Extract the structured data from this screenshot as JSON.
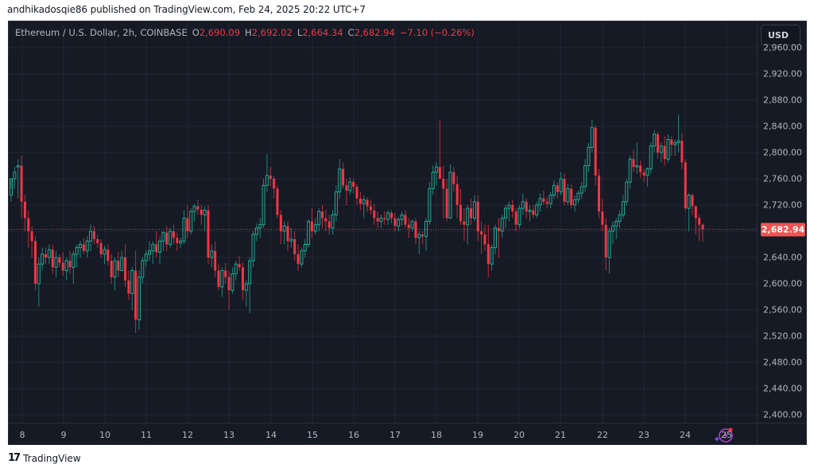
{
  "header": {
    "published_text": "andhikadosqie86 published on TradingView.com, Feb 24, 2025 20:22 UTC+7"
  },
  "legend": {
    "symbol": "Ethereum / U.S. Dollar, 2h, COINBASE",
    "o_label": "O",
    "o_value": "2,690.09",
    "h_label": "H",
    "h_value": "2,692.02",
    "l_label": "L",
    "l_value": "2,664.34",
    "c_label": "C",
    "c_value": "2,682.94",
    "change": "−7.10 (−0.26%)"
  },
  "price_axis": {
    "currency_button": "USD",
    "last_price_label": "2,682.94",
    "last_price_color": "#f05350"
  },
  "footer": {
    "brand": "TradingView",
    "logo_glyph": "17"
  },
  "icons": {
    "ai_assistant": "sparkle-lightning-icon"
  },
  "colors": {
    "background": "#161a25",
    "grid": "#232733",
    "up": "#22ab94",
    "down": "#f23645",
    "text": "#b2b5be"
  },
  "chart_data": {
    "type": "candlestick",
    "title": "Ethereum / U.S. Dollar, 2h, COINBASE",
    "xlabel": "",
    "ylabel": "USD",
    "ylim": [
      2380,
      2990
    ],
    "y_ticks": [
      2400,
      2440,
      2480,
      2520,
      2560,
      2600,
      2640,
      2680,
      2720,
      2760,
      2800,
      2840,
      2880,
      2920,
      2960
    ],
    "y_tick_labels": [
      "2,400.00",
      "2,440.00",
      "2,480.00",
      "2,520.00",
      "2,560.00",
      "2,600.00",
      "2,640.00",
      "2,680.00",
      "2,720.00",
      "2,760.00",
      "2,800.00",
      "2,840.00",
      "2,880.00",
      "2,920.00",
      "2,960.00"
    ],
    "x_tick_labels": [
      "8",
      "9",
      "10",
      "11",
      "12",
      "13",
      "14",
      "15",
      "16",
      "17",
      "18",
      "19",
      "20",
      "21",
      "22",
      "23",
      "24",
      "25"
    ],
    "x_tick_positions": [
      17,
      69,
      121,
      173,
      225,
      277,
      330,
      382,
      434,
      486,
      538,
      590,
      642,
      694,
      747,
      799,
      851,
      903
    ],
    "grid": true,
    "last_price": 2682.94,
    "candle_spacing": 4.35,
    "first_candle_x": 3,
    "ohlc": [
      [
        2735,
        2745,
        2725,
        2760
      ],
      [
        2760,
        2778,
        2745,
        2770
      ],
      [
        2778,
        2790,
        2730,
        2780
      ],
      [
        2780,
        2795,
        2700,
        2725
      ],
      [
        2725,
        2735,
        2680,
        2700
      ],
      [
        2700,
        2712,
        2655,
        2680
      ],
      [
        2680,
        2688,
        2640,
        2665
      ],
      [
        2665,
        2672,
        2590,
        2600
      ],
      [
        2600,
        2640,
        2565,
        2630
      ],
      [
        2630,
        2655,
        2620,
        2645
      ],
      [
        2645,
        2655,
        2630,
        2640
      ],
      [
        2640,
        2660,
        2630,
        2652
      ],
      [
        2652,
        2660,
        2615,
        2625
      ],
      [
        2625,
        2650,
        2610,
        2640
      ],
      [
        2640,
        2645,
        2625,
        2632
      ],
      [
        2632,
        2648,
        2612,
        2620
      ],
      [
        2620,
        2640,
        2605,
        2635
      ],
      [
        2635,
        2650,
        2615,
        2625
      ],
      [
        2625,
        2650,
        2600,
        2645
      ],
      [
        2645,
        2660,
        2625,
        2655
      ],
      [
        2655,
        2665,
        2640,
        2660
      ],
      [
        2660,
        2670,
        2645,
        2650
      ],
      [
        2650,
        2672,
        2640,
        2665
      ],
      [
        2665,
        2690,
        2650,
        2680
      ],
      [
        2680,
        2688,
        2660,
        2668
      ],
      [
        2668,
        2675,
        2655,
        2662
      ],
      [
        2662,
        2668,
        2640,
        2645
      ],
      [
        2645,
        2658,
        2630,
        2652
      ],
      [
        2652,
        2660,
        2628,
        2635
      ],
      [
        2635,
        2645,
        2600,
        2610
      ],
      [
        2610,
        2640,
        2590,
        2635
      ],
      [
        2635,
        2648,
        2610,
        2620
      ],
      [
        2620,
        2650,
        2620,
        2640
      ],
      [
        2640,
        2660,
        2595,
        2605
      ],
      [
        2605,
        2620,
        2575,
        2585
      ],
      [
        2585,
        2625,
        2560,
        2620
      ],
      [
        2620,
        2650,
        2525,
        2545
      ],
      [
        2545,
        2620,
        2530,
        2610
      ],
      [
        2610,
        2640,
        2600,
        2635
      ],
      [
        2635,
        2650,
        2625,
        2645
      ],
      [
        2645,
        2665,
        2635,
        2650
      ],
      [
        2650,
        2665,
        2630,
        2660
      ],
      [
        2660,
        2680,
        2640,
        2648
      ],
      [
        2648,
        2672,
        2630,
        2665
      ],
      [
        2665,
        2680,
        2650,
        2678
      ],
      [
        2678,
        2688,
        2650,
        2660
      ],
      [
        2660,
        2685,
        2655,
        2680
      ],
      [
        2680,
        2690,
        2660,
        2670
      ],
      [
        2670,
        2678,
        2650,
        2662
      ],
      [
        2662,
        2670,
        2655,
        2665
      ],
      [
        2665,
        2712,
        2660,
        2700
      ],
      [
        2700,
        2720,
        2670,
        2680
      ],
      [
        2680,
        2715,
        2675,
        2710
      ],
      [
        2710,
        2722,
        2695,
        2718
      ],
      [
        2718,
        2728,
        2705,
        2713
      ],
      [
        2713,
        2720,
        2690,
        2705
      ],
      [
        2705,
        2718,
        2680,
        2712
      ],
      [
        2712,
        2720,
        2630,
        2640
      ],
      [
        2640,
        2660,
        2625,
        2650
      ],
      [
        2650,
        2665,
        2610,
        2620
      ],
      [
        2620,
        2630,
        2590,
        2595
      ],
      [
        2595,
        2625,
        2580,
        2620
      ],
      [
        2620,
        2632,
        2600,
        2610
      ],
      [
        2610,
        2620,
        2560,
        2590
      ],
      [
        2590,
        2625,
        2585,
        2615
      ],
      [
        2615,
        2635,
        2605,
        2630
      ],
      [
        2630,
        2642,
        2620,
        2625
      ],
      [
        2625,
        2632,
        2575,
        2590
      ],
      [
        2590,
        2605,
        2565,
        2600
      ],
      [
        2600,
        2640,
        2555,
        2635
      ],
      [
        2635,
        2680,
        2625,
        2675
      ],
      [
        2675,
        2692,
        2665,
        2685
      ],
      [
        2685,
        2700,
        2670,
        2690
      ],
      [
        2690,
        2760,
        2685,
        2750
      ],
      [
        2750,
        2798,
        2740,
        2765
      ],
      [
        2765,
        2778,
        2748,
        2760
      ],
      [
        2760,
        2765,
        2730,
        2745
      ],
      [
        2745,
        2750,
        2700,
        2705
      ],
      [
        2705,
        2712,
        2660,
        2680
      ],
      [
        2680,
        2695,
        2660,
        2688
      ],
      [
        2688,
        2695,
        2650,
        2665
      ],
      [
        2665,
        2685,
        2655,
        2668
      ],
      [
        2668,
        2680,
        2635,
        2645
      ],
      [
        2645,
        2660,
        2620,
        2630
      ],
      [
        2630,
        2655,
        2625,
        2650
      ],
      [
        2650,
        2668,
        2640,
        2660
      ],
      [
        2660,
        2698,
        2655,
        2695
      ],
      [
        2695,
        2715,
        2670,
        2680
      ],
      [
        2680,
        2700,
        2675,
        2690
      ],
      [
        2690,
        2715,
        2680,
        2710
      ],
      [
        2710,
        2720,
        2685,
        2700
      ],
      [
        2700,
        2712,
        2680,
        2695
      ],
      [
        2695,
        2705,
        2675,
        2685
      ],
      [
        2685,
        2712,
        2675,
        2705
      ],
      [
        2705,
        2750,
        2695,
        2740
      ],
      [
        2740,
        2790,
        2730,
        2775
      ],
      [
        2775,
        2785,
        2745,
        2750
      ],
      [
        2750,
        2760,
        2720,
        2742
      ],
      [
        2742,
        2762,
        2735,
        2755
      ],
      [
        2755,
        2760,
        2738,
        2748
      ],
      [
        2748,
        2752,
        2720,
        2730
      ],
      [
        2730,
        2740,
        2712,
        2722
      ],
      [
        2722,
        2735,
        2700,
        2728
      ],
      [
        2728,
        2732,
        2710,
        2718
      ],
      [
        2718,
        2728,
        2705,
        2712
      ],
      [
        2712,
        2722,
        2690,
        2700
      ],
      [
        2700,
        2710,
        2685,
        2695
      ],
      [
        2695,
        2705,
        2685,
        2700
      ],
      [
        2700,
        2710,
        2690,
        2698
      ],
      [
        2698,
        2712,
        2690,
        2708
      ],
      [
        2708,
        2712,
        2692,
        2700
      ],
      [
        2700,
        2708,
        2680,
        2688
      ],
      [
        2688,
        2702,
        2680,
        2698
      ],
      [
        2698,
        2710,
        2688,
        2705
      ],
      [
        2705,
        2712,
        2685,
        2690
      ],
      [
        2690,
        2700,
        2670,
        2685
      ],
      [
        2685,
        2698,
        2680,
        2695
      ],
      [
        2695,
        2700,
        2660,
        2670
      ],
      [
        2670,
        2680,
        2645,
        2675
      ],
      [
        2675,
        2680,
        2660,
        2672
      ],
      [
        2672,
        2700,
        2650,
        2695
      ],
      [
        2695,
        2755,
        2690,
        2745
      ],
      [
        2745,
        2780,
        2735,
        2770
      ],
      [
        2770,
        2785,
        2750,
        2778
      ],
      [
        2778,
        2850,
        2770,
        2760
      ],
      [
        2760,
        2780,
        2700,
        2745
      ],
      [
        2745,
        2760,
        2695,
        2700
      ],
      [
        2700,
        2782,
        2700,
        2770
      ],
      [
        2770,
        2778,
        2740,
        2752
      ],
      [
        2752,
        2765,
        2700,
        2720
      ],
      [
        2720,
        2745,
        2690,
        2695
      ],
      [
        2695,
        2715,
        2665,
        2690
      ],
      [
        2690,
        2720,
        2660,
        2715
      ],
      [
        2715,
        2730,
        2690,
        2700
      ],
      [
        2700,
        2735,
        2695,
        2725
      ],
      [
        2725,
        2735,
        2665,
        2680
      ],
      [
        2680,
        2695,
        2645,
        2675
      ],
      [
        2675,
        2690,
        2650,
        2660
      ],
      [
        2660,
        2690,
        2610,
        2630
      ],
      [
        2630,
        2660,
        2620,
        2655
      ],
      [
        2655,
        2690,
        2645,
        2685
      ],
      [
        2685,
        2700,
        2640,
        2680
      ],
      [
        2680,
        2705,
        2670,
        2700
      ],
      [
        2700,
        2720,
        2685,
        2715
      ],
      [
        2715,
        2725,
        2695,
        2720
      ],
      [
        2720,
        2728,
        2700,
        2710
      ],
      [
        2710,
        2715,
        2680,
        2690
      ],
      [
        2690,
        2720,
        2685,
        2715
      ],
      [
        2715,
        2738,
        2705,
        2725
      ],
      [
        2725,
        2730,
        2700,
        2710
      ],
      [
        2710,
        2720,
        2695,
        2712
      ],
      [
        2712,
        2720,
        2700,
        2705
      ],
      [
        2705,
        2725,
        2700,
        2720
      ],
      [
        2720,
        2738,
        2710,
        2730
      ],
      [
        2730,
        2742,
        2720,
        2725
      ],
      [
        2725,
        2732,
        2715,
        2722
      ],
      [
        2722,
        2740,
        2715,
        2735
      ],
      [
        2735,
        2758,
        2730,
        2750
      ],
      [
        2750,
        2755,
        2730,
        2740
      ],
      [
        2740,
        2770,
        2735,
        2760
      ],
      [
        2760,
        2768,
        2720,
        2725
      ],
      [
        2725,
        2752,
        2720,
        2745
      ],
      [
        2745,
        2752,
        2715,
        2720
      ],
      [
        2720,
        2735,
        2710,
        2728
      ],
      [
        2728,
        2742,
        2722,
        2738
      ],
      [
        2738,
        2755,
        2730,
        2748
      ],
      [
        2748,
        2790,
        2740,
        2780
      ],
      [
        2780,
        2815,
        2770,
        2808
      ],
      [
        2808,
        2850,
        2800,
        2838
      ],
      [
        2838,
        2842,
        2750,
        2765
      ],
      [
        2765,
        2775,
        2700,
        2710
      ],
      [
        2710,
        2730,
        2680,
        2690
      ],
      [
        2690,
        2700,
        2620,
        2640
      ],
      [
        2640,
        2685,
        2615,
        2680
      ],
      [
        2680,
        2695,
        2660,
        2688
      ],
      [
        2688,
        2700,
        2668,
        2695
      ],
      [
        2695,
        2712,
        2685,
        2705
      ],
      [
        2705,
        2735,
        2700,
        2725
      ],
      [
        2725,
        2760,
        2720,
        2755
      ],
      [
        2755,
        2795,
        2745,
        2790
      ],
      [
        2790,
        2805,
        2770,
        2778
      ],
      [
        2778,
        2815,
        2768,
        2780
      ],
      [
        2780,
        2788,
        2762,
        2770
      ],
      [
        2770,
        2775,
        2755,
        2765
      ],
      [
        2765,
        2778,
        2748,
        2775
      ],
      [
        2775,
        2815,
        2768,
        2810
      ],
      [
        2810,
        2835,
        2800,
        2828
      ],
      [
        2828,
        2832,
        2790,
        2800
      ],
      [
        2800,
        2815,
        2785,
        2810
      ],
      [
        2810,
        2825,
        2780,
        2790
      ],
      [
        2790,
        2828,
        2785,
        2820
      ],
      [
        2820,
        2825,
        2795,
        2812
      ],
      [
        2812,
        2820,
        2795,
        2815
      ],
      [
        2815,
        2858,
        2800,
        2818
      ],
      [
        2818,
        2830,
        2775,
        2785
      ],
      [
        2785,
        2790,
        2710,
        2715
      ],
      [
        2715,
        2738,
        2680,
        2735
      ],
      [
        2735,
        2738,
        2705,
        2718
      ],
      [
        2718,
        2720,
        2675,
        2700
      ],
      [
        2700,
        2705,
        2665,
        2690
      ],
      [
        2690,
        2692,
        2664,
        2683
      ]
    ]
  }
}
